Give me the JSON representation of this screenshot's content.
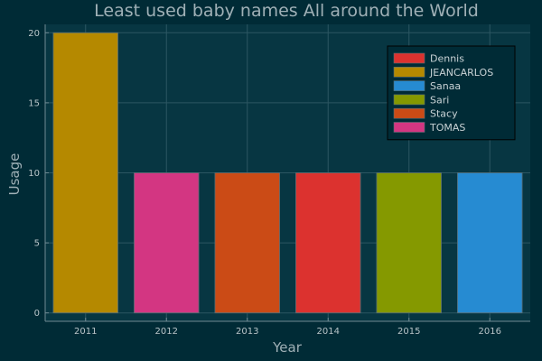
{
  "chart_data": {
    "type": "bar",
    "title": "Least used baby names All around the World",
    "xlabel": "Year",
    "ylabel": "Usage",
    "categories": [
      "2011",
      "2012",
      "2013",
      "2014",
      "2015",
      "2016"
    ],
    "yticks": [
      0,
      5,
      10,
      15,
      20
    ],
    "ylim": [
      -0.6,
      20.6
    ],
    "grid": true,
    "legend_position": "top-right",
    "bars": [
      {
        "category": "2011",
        "value": 20,
        "series": "JEANCARLOS"
      },
      {
        "category": "2012",
        "value": 10,
        "series": "TOMAS"
      },
      {
        "category": "2013",
        "value": 10,
        "series": "Stacy"
      },
      {
        "category": "2014",
        "value": 10,
        "series": "Dennis"
      },
      {
        "category": "2015",
        "value": 10,
        "series": "Sari"
      },
      {
        "category": "2016",
        "value": 10,
        "series": "Sanaa"
      }
    ],
    "series": [
      {
        "name": "Dennis",
        "color": "#dc322f"
      },
      {
        "name": "JEANCARLOS",
        "color": "#b58900"
      },
      {
        "name": "Sanaa",
        "color": "#268bd2"
      },
      {
        "name": "Sari",
        "color": "#859900"
      },
      {
        "name": "Stacy",
        "color": "#cb4b16"
      },
      {
        "name": "TOMAS",
        "color": "#d33682"
      }
    ],
    "colors": {
      "background": "#002b36",
      "plot_background": "#073642"
    }
  }
}
